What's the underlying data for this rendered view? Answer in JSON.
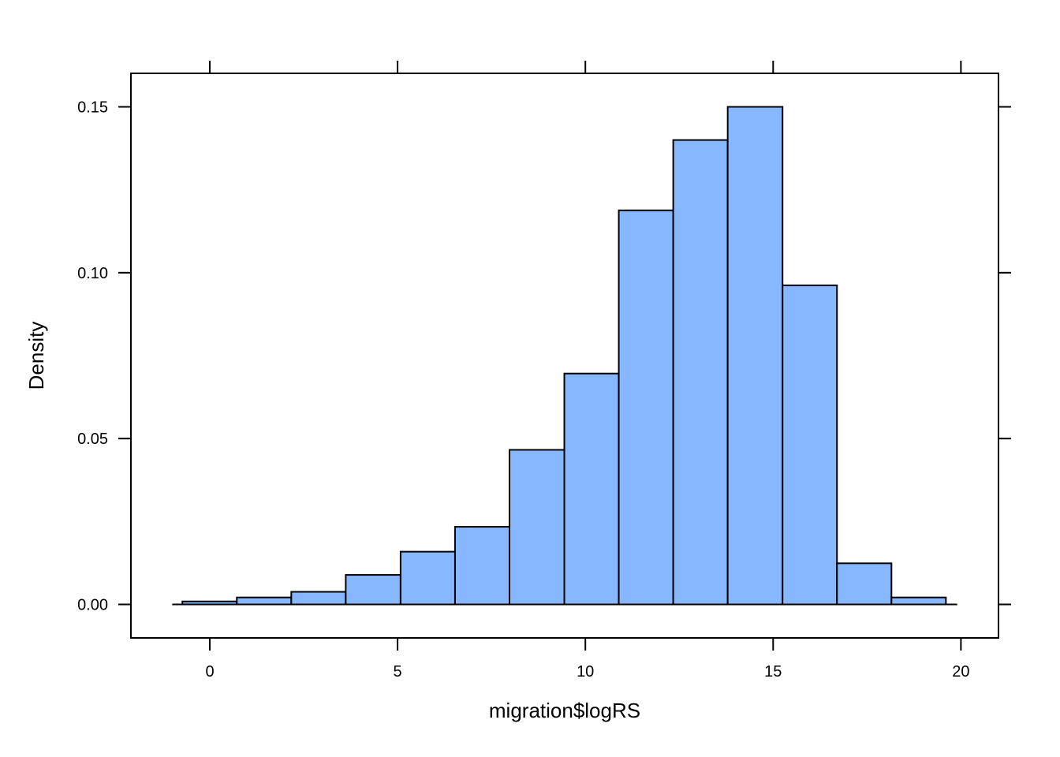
{
  "chart_data": {
    "type": "bar",
    "subtype": "histogram",
    "title": "",
    "xlabel": "migration$logRS",
    "ylabel": "Density",
    "xlim": [
      -2.1,
      21.0
    ],
    "ylim": [
      -0.0101,
      0.1601
    ],
    "x_ticks": [
      {
        "value": 0,
        "label": "0"
      },
      {
        "value": 5,
        "label": "5"
      },
      {
        "value": 10,
        "label": "10"
      },
      {
        "value": 15,
        "label": "15"
      },
      {
        "value": 20,
        "label": "20"
      }
    ],
    "y_ticks": [
      {
        "value": 0.0,
        "label": "0.00"
      },
      {
        "value": 0.05,
        "label": "0.05"
      },
      {
        "value": 0.1,
        "label": "0.10"
      },
      {
        "value": 0.15,
        "label": "0.15"
      }
    ],
    "baseline_range": [
      -1.0,
      19.9
    ],
    "bins": [
      {
        "x0": -0.73,
        "x1": 0.72,
        "density": 0.0009
      },
      {
        "x0": 0.72,
        "x1": 2.17,
        "density": 0.0021
      },
      {
        "x0": 2.17,
        "x1": 3.62,
        "density": 0.0038
      },
      {
        "x0": 3.62,
        "x1": 5.08,
        "density": 0.0089
      },
      {
        "x0": 5.08,
        "x1": 6.53,
        "density": 0.0159
      },
      {
        "x0": 6.53,
        "x1": 7.98,
        "density": 0.0234
      },
      {
        "x0": 7.98,
        "x1": 9.44,
        "density": 0.0466
      },
      {
        "x0": 9.44,
        "x1": 10.89,
        "density": 0.0696
      },
      {
        "x0": 10.89,
        "x1": 12.34,
        "density": 0.1188
      },
      {
        "x0": 12.34,
        "x1": 13.79,
        "density": 0.14
      },
      {
        "x0": 13.79,
        "x1": 15.25,
        "density": 0.15
      },
      {
        "x0": 15.25,
        "x1": 16.7,
        "density": 0.0962
      },
      {
        "x0": 16.7,
        "x1": 18.15,
        "density": 0.0124
      },
      {
        "x0": 18.15,
        "x1": 19.6,
        "density": 0.0021
      }
    ],
    "grid": false,
    "legend": "none",
    "colors": {
      "bar_fill": "#87B8FF",
      "bar_stroke": "#000000",
      "axis": "#000000"
    }
  }
}
